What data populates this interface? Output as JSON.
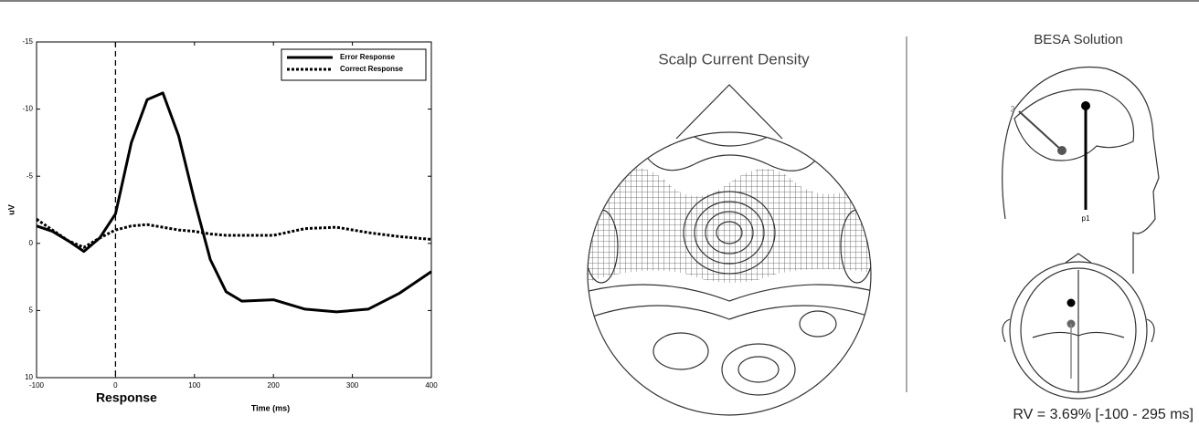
{
  "chart_data": {
    "type": "line",
    "x_label": "Time (ms)",
    "y_label": "uV",
    "annotation": {
      "text": "Response",
      "x": 0
    },
    "x": [
      -100,
      -80,
      -60,
      -40,
      -20,
      0,
      20,
      40,
      60,
      80,
      100,
      120,
      140,
      160,
      200,
      240,
      280,
      320,
      360,
      400
    ],
    "series": [
      {
        "name": "Error Response",
        "color": "#000000",
        "linestyle": "solid",
        "values": [
          -1.3,
          -0.9,
          -0.2,
          0.6,
          -0.4,
          -2.2,
          -7.5,
          -10.7,
          -11.2,
          -8.0,
          -3.2,
          1.2,
          3.6,
          4.3,
          4.2,
          4.9,
          5.1,
          4.9,
          3.7,
          2.1
        ]
      },
      {
        "name": "Correct Response",
        "color": "#000000",
        "linestyle": "dotted",
        "values": [
          -1.8,
          -1.0,
          -0.2,
          0.3,
          -0.4,
          -1.0,
          -1.3,
          -1.4,
          -1.2,
          -1.0,
          -0.9,
          -0.7,
          -0.6,
          -0.6,
          -0.6,
          -1.1,
          -1.2,
          -0.8,
          -0.5,
          -0.3
        ]
      }
    ],
    "xlim": [
      -100,
      400
    ],
    "xticks": [
      -100,
      0,
      100,
      200,
      300,
      400
    ],
    "ylim": [
      10,
      -15
    ],
    "yticks": [
      -15,
      -10,
      -5,
      0,
      5,
      10
    ],
    "legend": "upper right"
  },
  "panels": {
    "scalp_title": "Scalp Current Density",
    "besa_title": "BESA Solution",
    "dipole_1": "p1",
    "dipole_2": "2",
    "rv": "RV = 3.69% [-100 - 295 ms]"
  }
}
